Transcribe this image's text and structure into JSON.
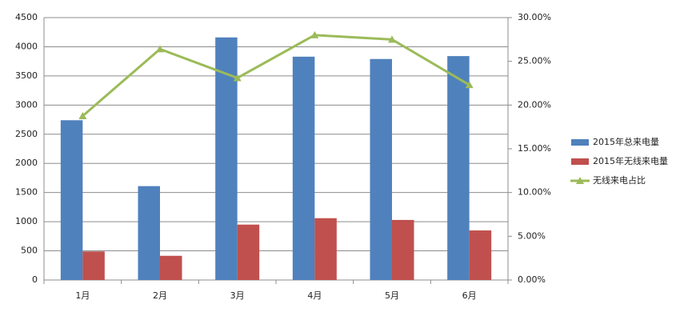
{
  "chart_data": {
    "type": "bar",
    "categories": [
      "1月",
      "2月",
      "3月",
      "4月",
      "5月",
      "6月"
    ],
    "series": [
      {
        "name": "2015年总来电量",
        "color": "#4f81bd",
        "values": [
          2740,
          1610,
          4160,
          3830,
          3790,
          3840
        ]
      },
      {
        "name": "2015年无线来电量",
        "color": "#c0504d",
        "values": [
          490,
          415,
          950,
          1060,
          1030,
          850
        ]
      },
      {
        "name": "无线来电占比",
        "color": "#9bbb59",
        "type": "line",
        "axis": "y2",
        "values": [
          18.75,
          26.4,
          23.1,
          28.0,
          27.5,
          22.3
        ]
      }
    ],
    "ylim": [
      0,
      4500
    ],
    "yticks": [
      0,
      500,
      1000,
      1500,
      2000,
      2500,
      3000,
      3500,
      4000,
      4500
    ],
    "y2lim": [
      0,
      30
    ],
    "y2ticks": [
      {
        "value": 0,
        "label": "0.00%"
      },
      {
        "value": 5,
        "label": "5.00%"
      },
      {
        "value": 10,
        "label": "10.00%"
      },
      {
        "value": 15,
        "label": "15.00%"
      },
      {
        "value": 20,
        "label": "20.00%"
      },
      {
        "value": 25,
        "label": "25.00%"
      },
      {
        "value": 30,
        "label": "30.00%"
      }
    ],
    "grid": true,
    "legend": "right"
  }
}
